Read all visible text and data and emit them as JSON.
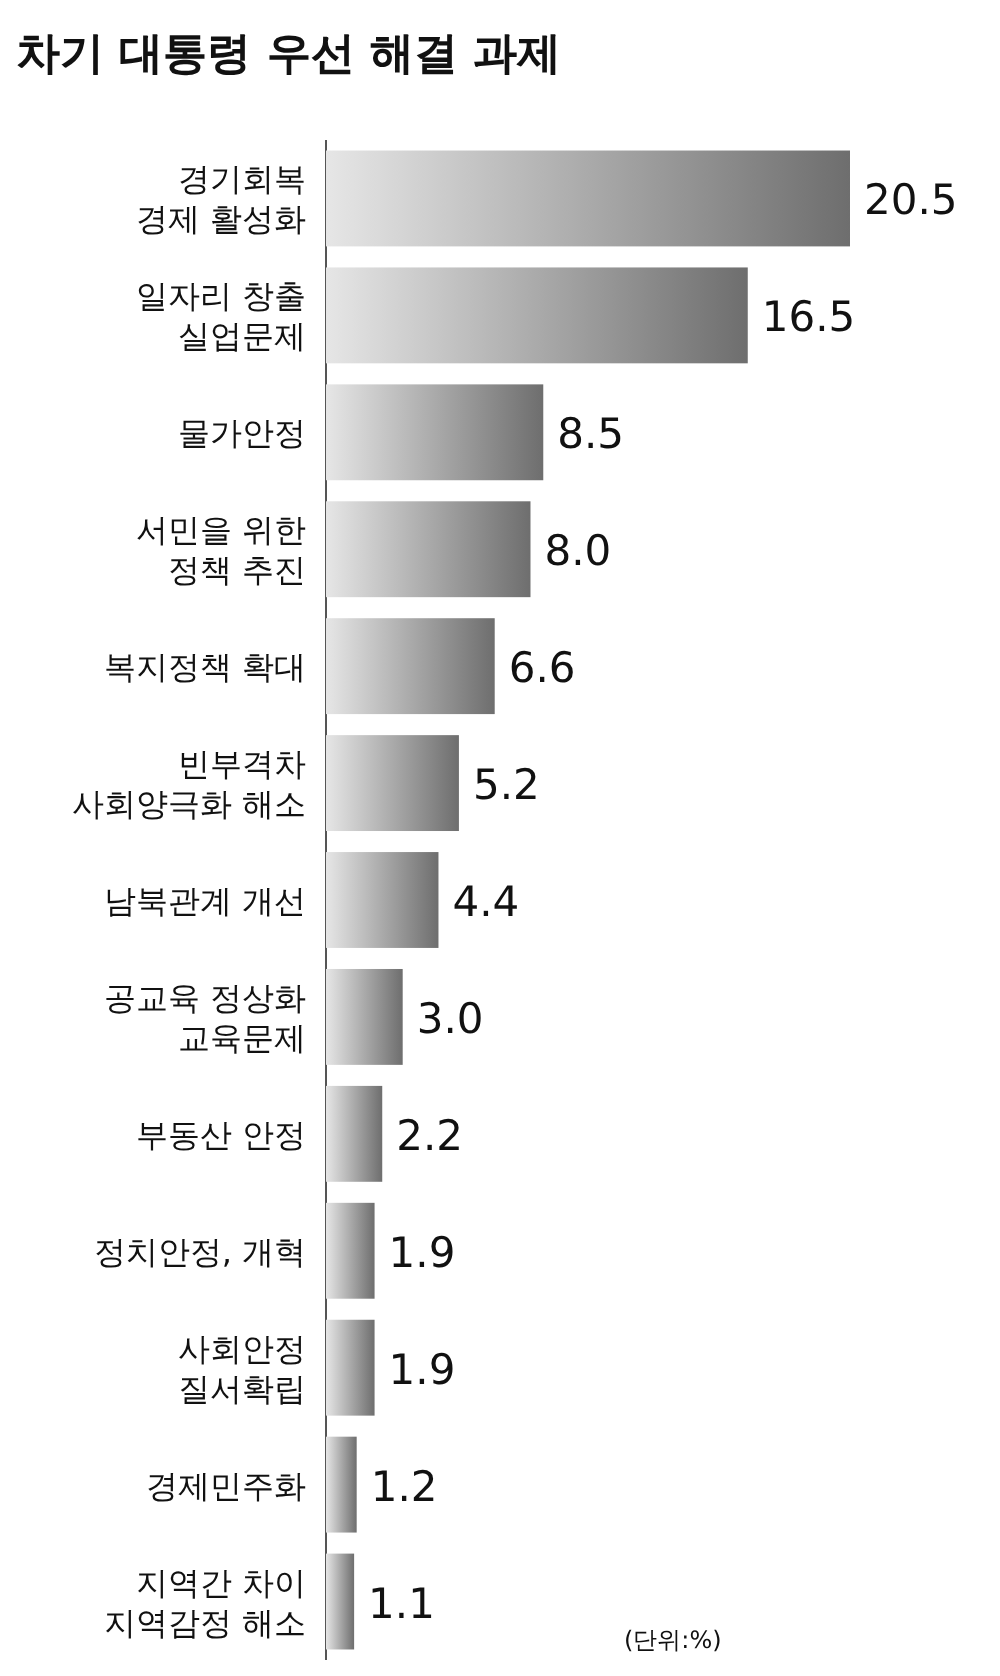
{
  "chart_data": {
    "type": "bar",
    "orientation": "horizontal",
    "title": "차기 대통령 우선 해결 과제",
    "categories": [
      "경기회복\n경제 활성화",
      "일자리 창출\n실업문제",
      "물가안정",
      "서민을 위한\n정책 추진",
      "복지정책 확대",
      "빈부격차\n사회양극화 해소",
      "남북관계 개선",
      "공교육 정상화\n교육문제",
      "부동산 안정",
      "정치안정, 개혁",
      "사회안정\n질서확립",
      "경제민주화",
      "지역간 차이\n지역감정 해소"
    ],
    "values": [
      20.5,
      16.5,
      8.5,
      8.0,
      6.6,
      5.2,
      4.4,
      3.0,
      2.2,
      1.9,
      1.9,
      1.2,
      1.1
    ],
    "color": "#6e6e6e",
    "value_labels": [
      "20.5",
      "16.5",
      "8.5",
      "8.0",
      "6.6",
      "5.2",
      "4.4",
      "3.0",
      "2.2",
      "1.9",
      "1.9",
      "1.2",
      "1.1"
    ],
    "annotations": [
      "(단위:%)"
    ]
  }
}
